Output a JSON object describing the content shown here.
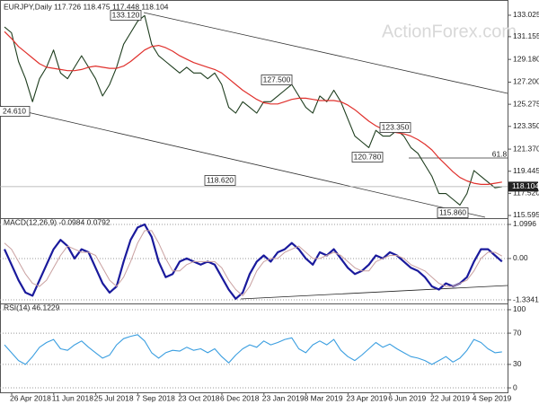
{
  "chart_data": [
    {
      "type": "line",
      "title": "EURJPY,Daily  117.726 118.475 117.448 118.104",
      "watermark": "ActionForex.com",
      "last_label": "118.104",
      "ylim": [
        115.36,
        133.96
      ],
      "yticks": [
        133.025,
        131.155,
        {
          "value": 129.18,
          "label": "129.180"
        },
        {
          "value": 127.2,
          "label": "127.200"
        },
        125.275,
        {
          "value": 123.35,
          "label": "123.350"
        },
        {
          "value": 121.37,
          "label": "121.370"
        },
        119.445,
        {
          "value": 117.52,
          "label": "117.520"
        },
        115.595
      ],
      "grid": false,
      "annotations": [
        "133.120",
        "127.500",
        "24.610",
        "118.620",
        "123.350",
        "120.780",
        "115.860",
        "61.8"
      ],
      "series": [
        {
          "color": "#1e3d1e",
          "values": [
            132.0,
            131.5,
            129.0,
            127.5,
            125.5,
            127.5,
            128.5,
            130.0,
            128.0,
            127.5,
            128.5,
            129.5,
            128.5,
            127.5,
            126.0,
            127.0,
            128.5,
            130.5,
            131.5,
            132.5,
            133.0,
            130.5,
            129.5,
            129.0,
            128.5,
            128.0,
            128.5,
            128.0,
            128.0,
            127.5,
            128.0,
            127.0,
            125.0,
            124.5,
            125.5,
            125.0,
            124.5,
            125.5,
            125.5,
            126.0,
            126.5,
            127.0,
            126.0,
            125.0,
            124.5,
            126.0,
            125.5,
            126.5,
            125.5,
            124.0,
            122.5,
            122.0,
            121.5,
            123.0,
            122.5,
            122.5,
            123.0,
            122.5,
            121.5,
            121.0,
            120.0,
            119.0,
            117.5,
            117.5,
            117.0,
            116.5,
            117.5,
            119.5,
            119.0,
            118.5,
            118.0,
            118.104
          ]
        },
        {
          "color": "#e0302c",
          "values": [
            131.6,
            131.0,
            130.3,
            129.8,
            129.3,
            128.8,
            128.5,
            128.4,
            128.3,
            128.2,
            128.2,
            128.3,
            128.5,
            128.6,
            128.5,
            128.4,
            128.4,
            128.6,
            129.0,
            129.5,
            130.0,
            130.3,
            130.4,
            130.2,
            129.9,
            129.5,
            129.2,
            128.9,
            128.7,
            128.5,
            128.3,
            128.0,
            127.5,
            127.0,
            126.5,
            126.1,
            125.7,
            125.4,
            125.3,
            125.3,
            125.5,
            125.7,
            125.8,
            125.8,
            125.7,
            125.6,
            125.6,
            125.6,
            125.5,
            125.2,
            124.8,
            124.3,
            123.8,
            123.4,
            123.1,
            122.9,
            122.8,
            122.7,
            122.5,
            122.2,
            121.8,
            121.3,
            120.6,
            120.0,
            119.4,
            118.9,
            118.6,
            118.4,
            118.3,
            118.3,
            118.4,
            118.5
          ]
        }
      ]
    },
    {
      "type": "line",
      "title": "MACD(12,26,9) -0.0984 0.0792",
      "ylim": [
        -1.421,
        1.244
      ],
      "yticks": [
        1.0996,
        {
          "value": 0,
          "label": "0.00"
        },
        -1.3341
      ],
      "grid": true,
      "series": [
        {
          "color": "#1a1a9c",
          "values": [
            0.3,
            -0.2,
            -0.7,
            -1.1,
            -1.2,
            -0.7,
            -0.2,
            0.3,
            0.6,
            0.4,
            0.0,
            0.3,
            0.2,
            -0.3,
            -0.8,
            -1.1,
            -0.9,
            -0.1,
            0.6,
            1.0,
            1.1,
            0.7,
            -0.1,
            -0.6,
            -0.5,
            -0.1,
            0.0,
            -0.1,
            -0.2,
            -0.1,
            -0.2,
            -0.6,
            -1.0,
            -1.3,
            -1.1,
            -0.5,
            -0.1,
            0.1,
            -0.1,
            0.2,
            0.3,
            0.5,
            0.3,
            0.0,
            -0.2,
            0.2,
            0.1,
            0.3,
            0.0,
            -0.3,
            -0.5,
            -0.4,
            -0.2,
            0.1,
            0.0,
            0.2,
            0.1,
            -0.1,
            -0.3,
            -0.4,
            -0.6,
            -0.9,
            -1.0,
            -0.8,
            -0.9,
            -0.8,
            -0.6,
            -0.1,
            0.3,
            0.3,
            0.1,
            -0.0984
          ]
        },
        {
          "color": "#c9a0a0",
          "values": [
            0.5,
            0.3,
            -0.1,
            -0.5,
            -0.8,
            -0.9,
            -0.7,
            -0.3,
            0.1,
            0.4,
            0.3,
            0.2,
            0.2,
            0.1,
            -0.3,
            -0.7,
            -0.9,
            -0.6,
            -0.1,
            0.5,
            0.9,
            0.9,
            0.5,
            0.0,
            -0.4,
            -0.4,
            -0.2,
            -0.1,
            -0.1,
            -0.1,
            -0.1,
            -0.3,
            -0.7,
            -1.0,
            -1.2,
            -0.9,
            -0.4,
            -0.1,
            0.0,
            0.0,
            0.2,
            0.3,
            0.4,
            0.2,
            0.0,
            0.0,
            0.1,
            0.2,
            0.1,
            -0.1,
            -0.3,
            -0.4,
            -0.4,
            -0.1,
            0.0,
            0.1,
            0.1,
            0.0,
            -0.2,
            -0.3,
            -0.4,
            -0.6,
            -0.8,
            -0.9,
            -0.9,
            -0.8,
            -0.7,
            -0.4,
            0.0,
            0.2,
            0.2,
            0.0792
          ]
        }
      ]
    },
    {
      "type": "line",
      "title": "RSI(14) 46.1229",
      "ylim": [
        -5.7,
        105.7
      ],
      "yticks": [
        100,
        70,
        30,
        0
      ],
      "grid": true,
      "categories": [
        "26 Apr 2018",
        null,
        null,
        null,
        null,
        null,
        "11 Jun 2018",
        null,
        null,
        null,
        null,
        null,
        "25 Jul 2018",
        null,
        null,
        null,
        null,
        null,
        "7 Sep 2018",
        null,
        null,
        null,
        null,
        null,
        "23 Oct 2018",
        null,
        null,
        null,
        null,
        null,
        "6 Dec 2018",
        null,
        null,
        null,
        null,
        null,
        "23 Jan 2019",
        null,
        null,
        null,
        null,
        null,
        "8 Mar 2019",
        null,
        null,
        null,
        null,
        null,
        "23 Apr 2019",
        null,
        null,
        null,
        null,
        null,
        "6 Jun 2019",
        null,
        null,
        null,
        null,
        null,
        "22 Jul 2019",
        null,
        null,
        null,
        null,
        null,
        "4 Sep 2019",
        null,
        null,
        null,
        null,
        null
      ],
      "series": [
        {
          "color": "#3a9ee0",
          "values": [
            55,
            45,
            35,
            30,
            40,
            52,
            58,
            62,
            50,
            48,
            55,
            60,
            52,
            45,
            38,
            42,
            55,
            63,
            66,
            68,
            60,
            45,
            38,
            45,
            48,
            47,
            52,
            48,
            50,
            45,
            50,
            40,
            32,
            42,
            50,
            55,
            52,
            60,
            55,
            58,
            62,
            64,
            50,
            45,
            55,
            60,
            55,
            62,
            48,
            40,
            35,
            42,
            50,
            58,
            52,
            56,
            50,
            45,
            40,
            38,
            35,
            30,
            35,
            40,
            33,
            38,
            48,
            62,
            58,
            50,
            45,
            46.1229
          ]
        }
      ]
    }
  ]
}
